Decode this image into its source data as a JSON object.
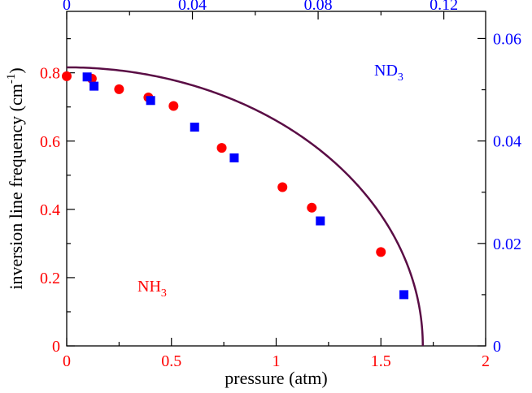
{
  "chart_data": {
    "type": "scatter",
    "xlabel": "pressure (atm)",
    "ylabel": "inversion line frequency (cm",
    "ylabel_sup": "-1",
    "ylabel_close": ")",
    "x_bottom": {
      "range": [
        0,
        2
      ],
      "ticks": [
        0,
        0.5,
        1,
        1.5,
        2
      ],
      "tick_labels": [
        "0",
        "0.5",
        "1",
        "1.5",
        "2"
      ],
      "minor_ticks": [
        0.25,
        0.75,
        1.25,
        1.75
      ],
      "color": "#ff0000"
    },
    "x_top": {
      "range": [
        0,
        0.1333
      ],
      "ticks": [
        0,
        0.04,
        0.08,
        0.12
      ],
      "tick_labels": [
        "0",
        "0.04",
        "0.08",
        "0.12"
      ],
      "minor_ticks": [
        0.02,
        0.06,
        0.1
      ],
      "color": "#0000ff"
    },
    "y_left": {
      "range": [
        0,
        0.98
      ],
      "ticks": [
        0,
        0.2,
        0.4,
        0.6,
        0.8
      ],
      "tick_labels": [
        "0",
        "0.2",
        "0.4",
        "0.6",
        "0.8"
      ],
      "minor_ticks": [
        0.1,
        0.3,
        0.5,
        0.7,
        0.9
      ],
      "color": "#ff0000"
    },
    "y_right": {
      "range": [
        0,
        0.0653
      ],
      "ticks": [
        0,
        0.02,
        0.04,
        0.06
      ],
      "tick_labels": [
        "0",
        "0.02",
        "0.04",
        "0.06"
      ],
      "minor_ticks": [
        0.01,
        0.03,
        0.05
      ],
      "color": "#0000ff"
    },
    "series": [
      {
        "name": "NH3",
        "label_main": "NH",
        "label_sub": "3",
        "marker": "circle",
        "color": "#ff0000",
        "axes": "bottom-left",
        "x": [
          0.0,
          0.12,
          0.25,
          0.39,
          0.51,
          0.74,
          1.03,
          1.17,
          1.5
        ],
        "y": [
          0.79,
          0.783,
          0.752,
          0.728,
          0.703,
          0.58,
          0.465,
          0.405,
          0.275
        ]
      },
      {
        "name": "ND3",
        "label_main": "ND",
        "label_sub": "3",
        "marker": "square",
        "color": "#0000ff",
        "axes": "top-right",
        "x": [
          0.0065,
          0.0087,
          0.0267,
          0.0407,
          0.0533,
          0.0807,
          0.1073
        ],
        "y": [
          0.0525,
          0.0507,
          0.0479,
          0.0427,
          0.0367,
          0.0244,
          0.01
        ]
      }
    ],
    "fit_curve": {
      "name": "fit",
      "color": "#5a0d45",
      "equation": "y = 0.816 * sqrt(1 - (x / 1.7)^2)",
      "y0": 0.816,
      "x_end": 1.7
    }
  }
}
